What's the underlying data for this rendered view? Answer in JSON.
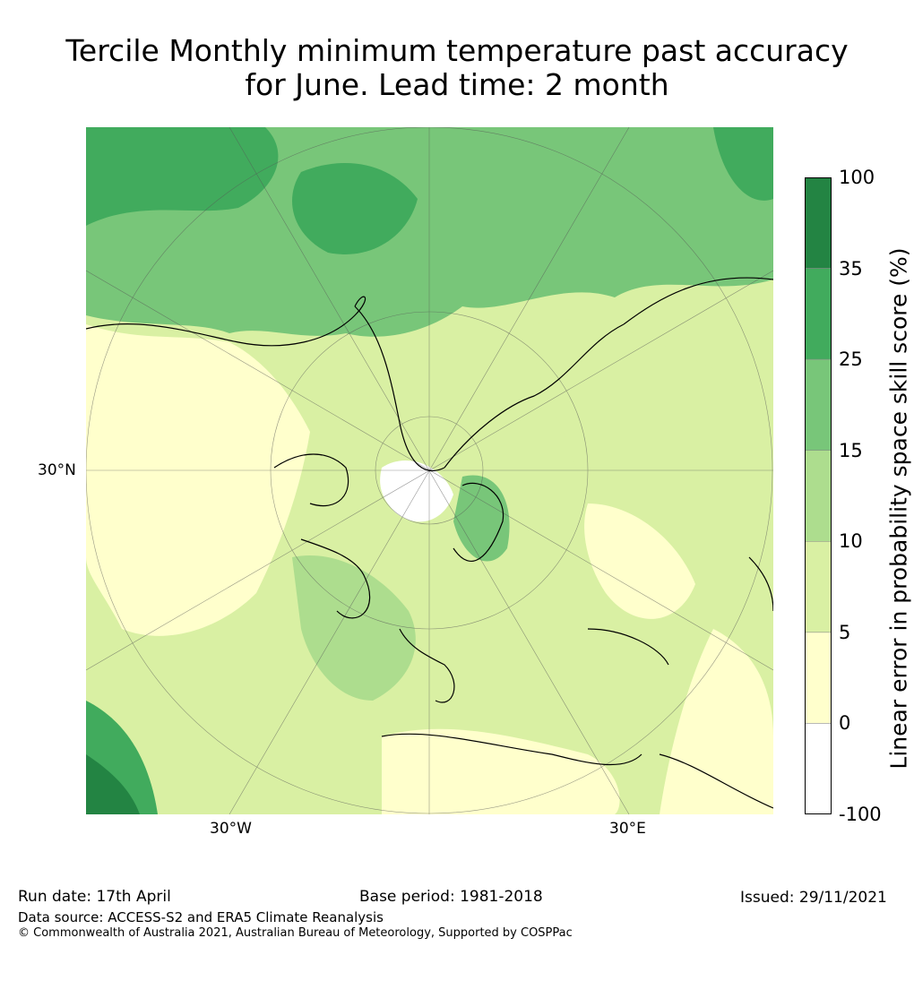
{
  "title_line1": "Tercile Monthly minimum temperature past accuracy",
  "title_line2": "for June. Lead time: 2 month",
  "axis_ticks": {
    "lat_left": "30°N",
    "lon_left": "30°W",
    "lon_right": "30°E"
  },
  "colorbar": {
    "title": "Linear error in probability space skill score (%)",
    "levels": [
      "100",
      "35",
      "25",
      "15",
      "10",
      "5",
      "0",
      "-100"
    ],
    "colors": [
      "#238443",
      "#41ab5d",
      "#78c679",
      "#addd8e",
      "#d9f0a3",
      "#ffffcc",
      "#ffffff"
    ]
  },
  "footer": {
    "run_date": "Run date: 17th April",
    "base_period": "Base period: 1981-2018",
    "issued": "Issued: 29/11/2021",
    "data_source": "Data source: ACCESS-S2 and ERA5 Climate Reanalysis",
    "copyright": "© Commonwealth of Australia 2021, Australian Bureau of Meteorology, Supported by COSPPac"
  }
}
